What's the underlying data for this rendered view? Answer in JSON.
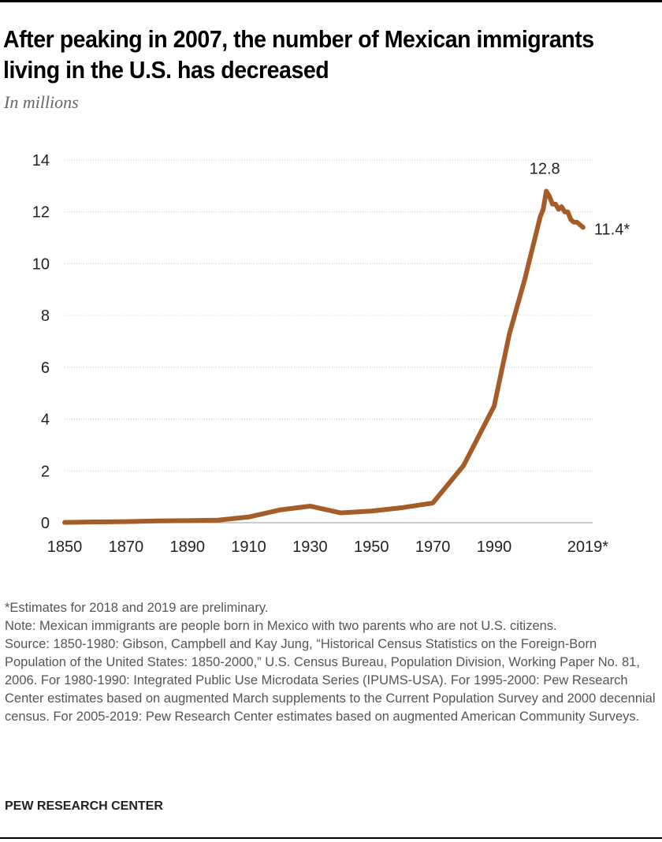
{
  "title": "After peaking in 2007, the number of Mexican immigrants living in the U.S. has decreased",
  "subtitle": "In millions",
  "chart_data": {
    "type": "line",
    "title": "After peaking in 2007, the number of Mexican immigrants living in the U.S. has decreased",
    "ylabel": "In millions",
    "xlabel": "",
    "xlim": [
      1850,
      2019
    ],
    "ylim": [
      0,
      14
    ],
    "yticks": [
      0,
      2,
      4,
      6,
      8,
      10,
      12,
      14
    ],
    "xtick_labels": [
      {
        "year": 1850,
        "label": "1850"
      },
      {
        "year": 1870,
        "label": "1870"
      },
      {
        "year": 1890,
        "label": "1890"
      },
      {
        "year": 1910,
        "label": "1910"
      },
      {
        "year": 1930,
        "label": "1930"
      },
      {
        "year": 1950,
        "label": "1950"
      },
      {
        "year": 1970,
        "label": "1970"
      },
      {
        "year": 1990,
        "label": "1990"
      },
      {
        "year": 2019,
        "label": "2019*"
      }
    ],
    "grid": true,
    "color": "#a65c28",
    "x": [
      1850,
      1860,
      1870,
      1880,
      1890,
      1900,
      1910,
      1920,
      1930,
      1940,
      1950,
      1960,
      1970,
      1980,
      1990,
      1995,
      2000,
      2005,
      2006,
      2007,
      2008,
      2009,
      2010,
      2011,
      2012,
      2013,
      2014,
      2015,
      2016,
      2017,
      2018,
      2019
    ],
    "y": [
      0.01,
      0.03,
      0.04,
      0.07,
      0.08,
      0.1,
      0.22,
      0.49,
      0.64,
      0.38,
      0.45,
      0.58,
      0.76,
      2.2,
      4.5,
      7.3,
      9.4,
      11.8,
      12.1,
      12.8,
      12.6,
      12.3,
      12.3,
      12.1,
      12.2,
      12.0,
      12.0,
      11.7,
      11.6,
      11.6,
      11.5,
      11.4
    ],
    "annotations": [
      {
        "year": 2007,
        "value": 12.8,
        "label": "12.8"
      },
      {
        "year": 2019,
        "value": 11.4,
        "label": "11.4*"
      }
    ]
  },
  "notes": [
    "*Estimates for 2018 and 2019 are preliminary.",
    "Note: Mexican immigrants are people born in Mexico with two parents who are not U.S. citizens.",
    "Source: 1850-1980: Gibson, Campbell and Kay Jung, “Historical Census Statistics on the Foreign-Born Population of the United States: 1850-2000,” U.S. Census Bureau, Population Division, Working Paper No. 81, 2006. For 1980-1990: Integrated Public Use Microdata Series (IPUMS-USA). For 1995-2000: Pew Research Center estimates based on augmented March supplements to the Current Population Survey and 2000 decennial census. For 2005-2019: Pew Research Center estimates based on augmented American Community Surveys."
  ],
  "brand": "PEW RESEARCH CENTER"
}
